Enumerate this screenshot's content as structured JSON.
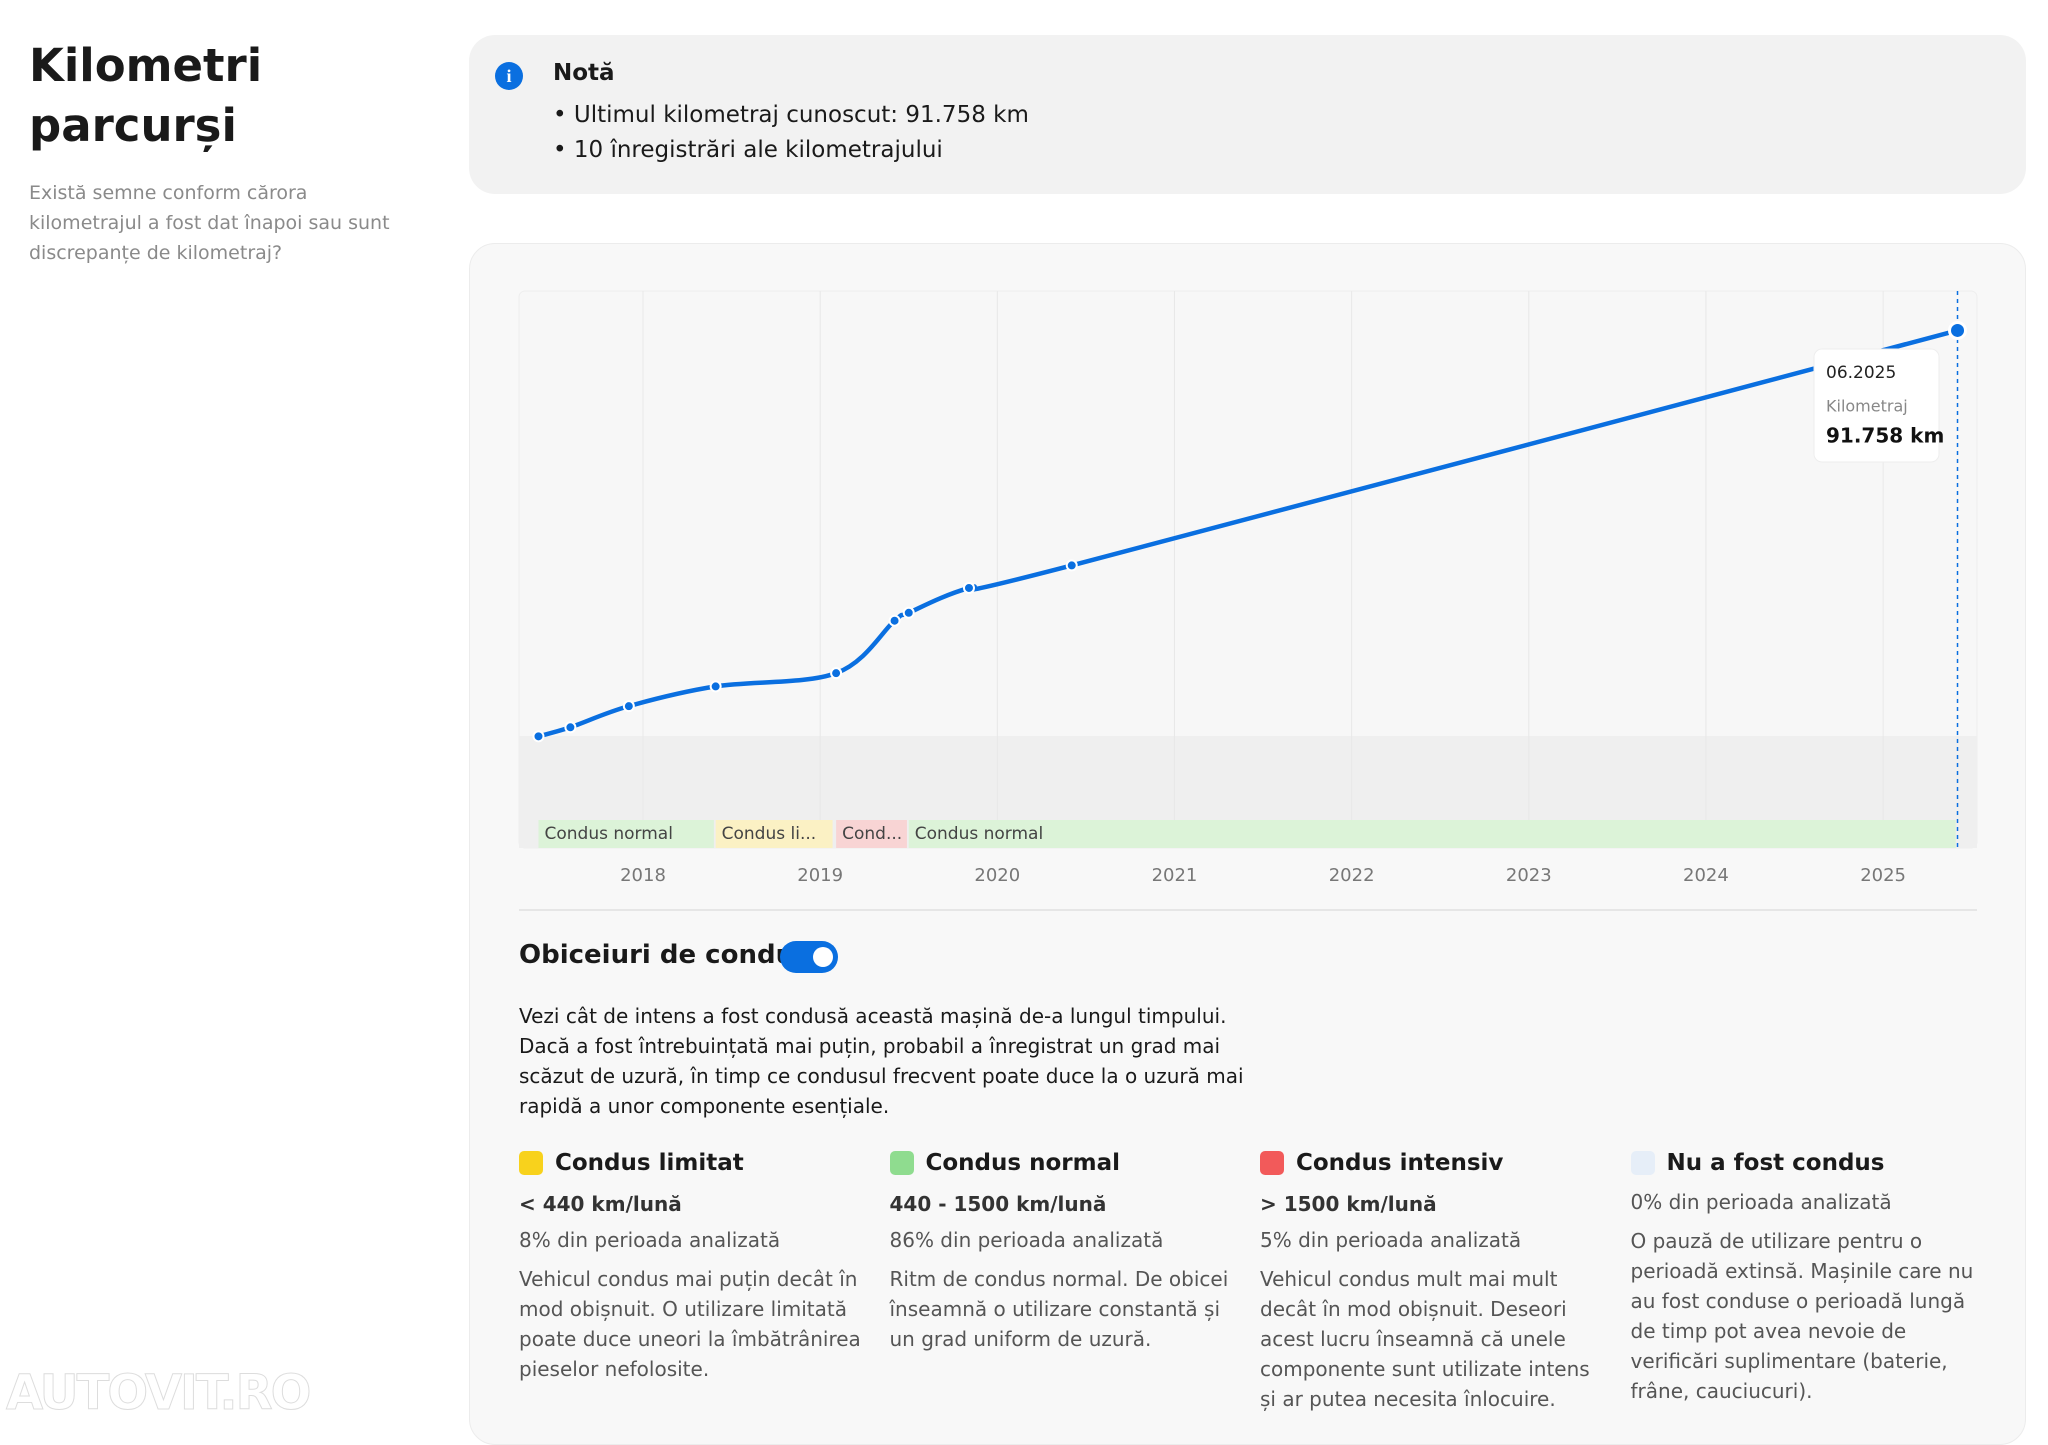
{
  "header": {
    "title": "Kilometri parcurși",
    "subtitle": "Există semne conform cărora kilometrajul a fost dat înapoi sau sunt discrepanțe de kilometraj?"
  },
  "note": {
    "title": "Notă",
    "items": [
      "Ultimul kilometraj cunoscut: 91.758 km",
      "10 înregistrări ale kilometrajului"
    ]
  },
  "chart_data": {
    "type": "line",
    "x": [
      2017.41,
      2017.59,
      2017.92,
      2018.41,
      2019.09,
      2019.42,
      2019.5,
      2019.84,
      2020.42,
      2025.42
    ],
    "series": [
      {
        "name": "Kilometraj",
        "color": "#0a6fe0",
        "values": [
          19800,
          21400,
          25150,
          28650,
          31000,
          40300,
          41700,
          46100,
          50100,
          91758
        ],
        "value_labels": [
          null,
          null,
          null,
          null,
          null,
          null,
          null,
          null,
          null,
          "91.758 km"
        ]
      }
    ],
    "xlim": [
      2017.3,
      2025.53
    ],
    "ylim": [
      0,
      98750
    ],
    "xticks": [
      2018,
      2019,
      2020,
      2021,
      2022,
      2023,
      2024,
      2025
    ],
    "grid": true,
    "tooltip": {
      "date": "06.2025"
    },
    "periods": [
      {
        "label": "Condus normal",
        "start": 2017.41,
        "end": 2018.4,
        "color": "#dcf3d8"
      },
      {
        "label": "Condus li...",
        "start": 2018.41,
        "end": 2019.07,
        "color": "#fbf1c4"
      },
      {
        "label": "Cond...",
        "start": 2019.09,
        "end": 2019.49,
        "color": "#f8d4d4"
      },
      {
        "label": "Condus normal",
        "start": 2019.5,
        "end": 2025.41,
        "color": "#dcf3d8"
      }
    ]
  },
  "habits": {
    "title": "Obiceiuri de condus",
    "text": "Vezi cât de intens a fost condusă această mașină de-a lungul timpului. Dacă a fost întrebuințată mai puțin, probabil a înregistrat un grad mai scăzut de uzură, în timp ce condusul frecvent poate duce la o uzură mai rapidă a unor componente esențiale.",
    "items": [
      {
        "name": "Condus limitat",
        "color": "#f8d21c",
        "range": "< 440 km/lună",
        "share": "8% din perioada analizată",
        "description": "Vehicul condus mai puțin decât în mod obișnuit. O utilizare limitată poate duce uneori la îmbătrânirea pieselor nefolosite."
      },
      {
        "name": "Condus normal",
        "color": "#8fdc8f",
        "range": "440 - 1500 km/lună",
        "share": "86% din perioada analizată",
        "description": "Ritm de condus normal. De obicei înseamnă o utilizare constantă și un grad uniform de uzură."
      },
      {
        "name": "Condus intensiv",
        "color": "#f25a5a",
        "range": "> 1500 km/lună",
        "share": "5% din perioada analizată",
        "description": "Vehicul condus mult mai mult decât în mod obișnuit. Deseori acest lucru înseamnă că unele componente sunt utilizate intens și ar putea necesita înlocuire."
      },
      {
        "name": "Nu a fost condus",
        "color": "#e6eef8",
        "share": "0% din perioada analizată",
        "description": "O pauză de utilizare pentru o perioadă extinsă. Mașinile care nu au fost conduse o perioadă lungă de timp pot avea nevoie de verificări suplimentare (baterie, frâne, cauciucuri)."
      }
    ]
  },
  "watermark": "AUTOVIT.RO"
}
